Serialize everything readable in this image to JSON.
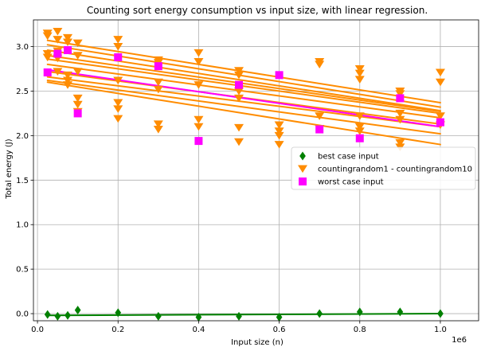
{
  "chart_data": {
    "type": "scatter",
    "title": "Counting sort energy consumption vs input size, with linear regression.",
    "xlabel": "Input size (n)",
    "ylabel": "Total energy (J)",
    "x_offset_label": "1e6",
    "xlim": [
      -10000,
      1095000
    ],
    "ylim": [
      -0.08,
      3.3
    ],
    "xticks": [
      0.0,
      0.2,
      0.4,
      0.6,
      0.8,
      1.0
    ],
    "yticks": [
      0.0,
      0.5,
      1.0,
      1.5,
      2.0,
      2.5,
      3.0
    ],
    "grid": true,
    "legend_position": "center-right",
    "x": [
      25000,
      50000,
      75000,
      100000,
      200000,
      300000,
      400000,
      500000,
      600000,
      700000,
      800000,
      900000,
      1000000
    ],
    "series": [
      {
        "name": "best case input",
        "marker": "diamond",
        "color": "#008000",
        "values": [
          -0.01,
          -0.03,
          -0.02,
          0.04,
          0.01,
          -0.03,
          -0.04,
          -0.03,
          -0.04,
          0.0,
          0.02,
          0.02,
          0.0
        ],
        "regression": [
          -0.02,
          0.0
        ]
      },
      {
        "name": "countingrandom1 - countingrandom10",
        "marker": "triangle-down",
        "color": "#ff8c00",
        "points": [
          [
            25000,
            3.15
          ],
          [
            25000,
            3.12
          ],
          [
            25000,
            2.92
          ],
          [
            25000,
            2.88
          ],
          [
            50000,
            3.17
          ],
          [
            50000,
            3.08
          ],
          [
            50000,
            2.95
          ],
          [
            50000,
            2.87
          ],
          [
            50000,
            2.72
          ],
          [
            75000,
            3.1
          ],
          [
            75000,
            3.05
          ],
          [
            75000,
            2.68
          ],
          [
            75000,
            2.62
          ],
          [
            75000,
            2.57
          ],
          [
            100000,
            3.04
          ],
          [
            100000,
            2.9
          ],
          [
            100000,
            2.72
          ],
          [
            100000,
            2.42
          ],
          [
            100000,
            2.35
          ],
          [
            100000,
            2.27
          ],
          [
            200000,
            3.08
          ],
          [
            200000,
            3.0
          ],
          [
            200000,
            2.62
          ],
          [
            200000,
            2.37
          ],
          [
            200000,
            2.3
          ],
          [
            200000,
            2.19
          ],
          [
            300000,
            2.85
          ],
          [
            300000,
            2.82
          ],
          [
            300000,
            2.6
          ],
          [
            300000,
            2.52
          ],
          [
            300000,
            2.13
          ],
          [
            300000,
            2.07
          ],
          [
            400000,
            2.93
          ],
          [
            400000,
            2.83
          ],
          [
            400000,
            2.57
          ],
          [
            400000,
            2.18
          ],
          [
            400000,
            2.1
          ],
          [
            500000,
            2.73
          ],
          [
            500000,
            2.68
          ],
          [
            500000,
            2.5
          ],
          [
            500000,
            2.42
          ],
          [
            500000,
            2.09
          ],
          [
            500000,
            1.93
          ],
          [
            600000,
            2.12
          ],
          [
            600000,
            2.05
          ],
          [
            600000,
            2.0
          ],
          [
            600000,
            1.9
          ],
          [
            700000,
            2.83
          ],
          [
            700000,
            2.8
          ],
          [
            700000,
            2.22
          ],
          [
            700000,
            2.08
          ],
          [
            800000,
            2.75
          ],
          [
            800000,
            2.7
          ],
          [
            800000,
            2.63
          ],
          [
            800000,
            2.22
          ],
          [
            800000,
            2.1
          ],
          [
            800000,
            2.05
          ],
          [
            900000,
            2.5
          ],
          [
            900000,
            2.47
          ],
          [
            900000,
            2.25
          ],
          [
            900000,
            2.18
          ],
          [
            900000,
            1.92
          ],
          [
            900000,
            1.87
          ],
          [
            1000000,
            2.71
          ],
          [
            1000000,
            2.6
          ],
          [
            1000000,
            2.22
          ],
          [
            1000000,
            2.12
          ]
        ],
        "regressions": [
          [
            3.07,
            2.37
          ],
          [
            3.02,
            2.32
          ],
          [
            2.96,
            2.28
          ],
          [
            2.9,
            2.27
          ],
          [
            2.86,
            2.25
          ],
          [
            2.8,
            2.2
          ],
          [
            2.72,
            2.13
          ],
          [
            2.66,
            2.1
          ],
          [
            2.62,
            2.02
          ],
          [
            2.6,
            1.9
          ]
        ]
      },
      {
        "name": "worst case input",
        "marker": "square",
        "color": "#ff00ff",
        "values": [
          2.71,
          2.92,
          2.96,
          2.25,
          2.88,
          2.78,
          1.94,
          2.57,
          2.68,
          2.07,
          1.97,
          2.42,
          2.15
        ],
        "regression": [
          2.74,
          2.1
        ]
      }
    ]
  }
}
